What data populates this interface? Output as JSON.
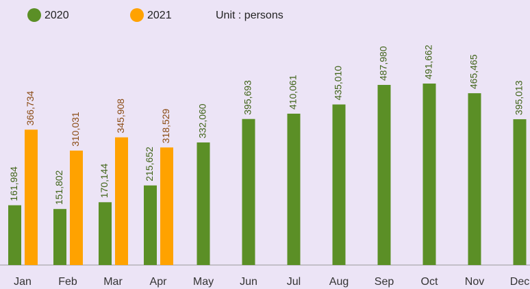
{
  "chart_data": {
    "type": "bar",
    "unit_label": "Unit : persons",
    "categories": [
      "Jan",
      "Feb",
      "Mar",
      "Apr",
      "May",
      "Jun",
      "Jul",
      "Aug",
      "Sep",
      "Oct",
      "Nov",
      "Dec"
    ],
    "series": [
      {
        "name": "2020",
        "color": "#5b8f26",
        "label_color": "#3f6317",
        "values": [
          161984,
          151802,
          170144,
          215652,
          332060,
          395693,
          410061,
          435010,
          487980,
          491662,
          465465,
          395013
        ],
        "value_labels": [
          "161,984",
          "151,802",
          "170,144",
          "215,652",
          "332,060",
          "395,693",
          "410,061",
          "435,010",
          "487,980",
          "491,662",
          "465,465",
          "395,013"
        ]
      },
      {
        "name": "2021",
        "color": "#ffa200",
        "label_color": "#8a4a12",
        "values": [
          366734,
          310031,
          345908,
          318529,
          null,
          null,
          null,
          null,
          null,
          null,
          null,
          null
        ],
        "value_labels": [
          "366,734",
          "310,031",
          "345,908",
          "318,529",
          null,
          null,
          null,
          null,
          null,
          null,
          null,
          null
        ]
      }
    ]
  }
}
